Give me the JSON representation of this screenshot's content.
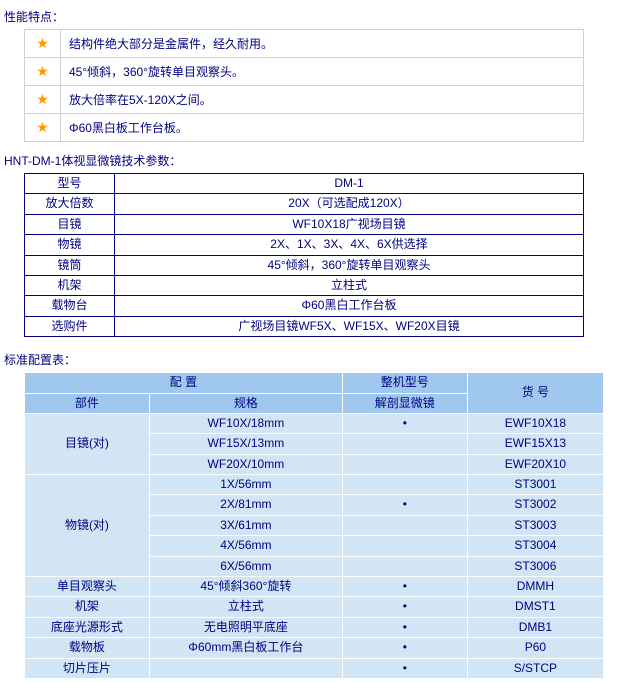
{
  "colors": {
    "text": "#000080",
    "border_light": "#d0d0d0",
    "border_spec": "#000080",
    "star": "#ff9900",
    "hdr_bg": "#a0c8ef",
    "body_bg": "#d1e5f5",
    "border_cfg": "#ffffff"
  },
  "titles": {
    "features": "性能特点：",
    "spec": "HNT-DM-1体视显微镜技术参数：",
    "config": "标准配置表："
  },
  "features": [
    "结构件绝大部分是金属件，经久耐用。",
    "45°倾斜，360°旋转单目观察头。",
    "放大倍率在5X-120X之间。",
    "Φ60黑白板工作台板。"
  ],
  "spec": {
    "rows": [
      {
        "label": "型号",
        "value": "DM-1"
      },
      {
        "label": "放大倍数",
        "value": "20X（可选配成120X）"
      },
      {
        "label": "目镜",
        "value": "WF10X18广视场目镜"
      },
      {
        "label": "物镜",
        "value": "2X、1X、3X、4X、6X供选择"
      },
      {
        "label": "镜筒",
        "value": "45°倾斜，360°旋转单目观察头"
      },
      {
        "label": "机架",
        "value": "立柱式"
      },
      {
        "label": "载物台",
        "value": "Φ60黑白工作台板"
      },
      {
        "label": "选购件",
        "value": "广视场目镜WF5X、WF15X、WF20X目镜"
      }
    ]
  },
  "config": {
    "headers": {
      "peizhi": "配 置",
      "bujian": "部件",
      "guige": "规格",
      "zhengji": "整机型号",
      "jiepou": "解剖显微镜",
      "huohao": "货 号"
    },
    "groups": [
      {
        "bujian": "目镜(对)",
        "items": [
          {
            "guige": "WF10X/18mm",
            "dot": true,
            "huohao": "EWF10X18"
          },
          {
            "guige": "WF15X/13mm",
            "dot": false,
            "huohao": "EWF15X13"
          },
          {
            "guige": "WF20X/10mm",
            "dot": false,
            "huohao": "EWF20X10"
          }
        ]
      },
      {
        "bujian": "物镜(对)",
        "items": [
          {
            "guige": "1X/56mm",
            "dot": false,
            "huohao": "ST3001"
          },
          {
            "guige": "2X/81mm",
            "dot": true,
            "huohao": "ST3002"
          },
          {
            "guige": "3X/61mm",
            "dot": false,
            "huohao": "ST3003"
          },
          {
            "guige": "4X/56mm",
            "dot": false,
            "huohao": "ST3004"
          },
          {
            "guige": "6X/56mm",
            "dot": false,
            "huohao": "ST3006"
          }
        ]
      },
      {
        "bujian": "单目观察头",
        "items": [
          {
            "guige": "45°倾斜360°旋转",
            "dot": true,
            "huohao": "DMMH"
          }
        ]
      },
      {
        "bujian": "机架",
        "items": [
          {
            "guige": "立柱式",
            "dot": true,
            "huohao": "DMST1"
          }
        ]
      },
      {
        "bujian": "底座光源形式",
        "items": [
          {
            "guige": "无电照明平底座",
            "dot": true,
            "huohao": "DMB1"
          }
        ]
      },
      {
        "bujian": "载物板",
        "items": [
          {
            "guige": "Φ60mm黑白板工作台",
            "dot": true,
            "huohao": "P60"
          }
        ]
      },
      {
        "bujian": "切片压片",
        "items": [
          {
            "guige": "",
            "dot": true,
            "huohao": "S/STCP"
          }
        ]
      }
    ],
    "dot_char": "•"
  }
}
